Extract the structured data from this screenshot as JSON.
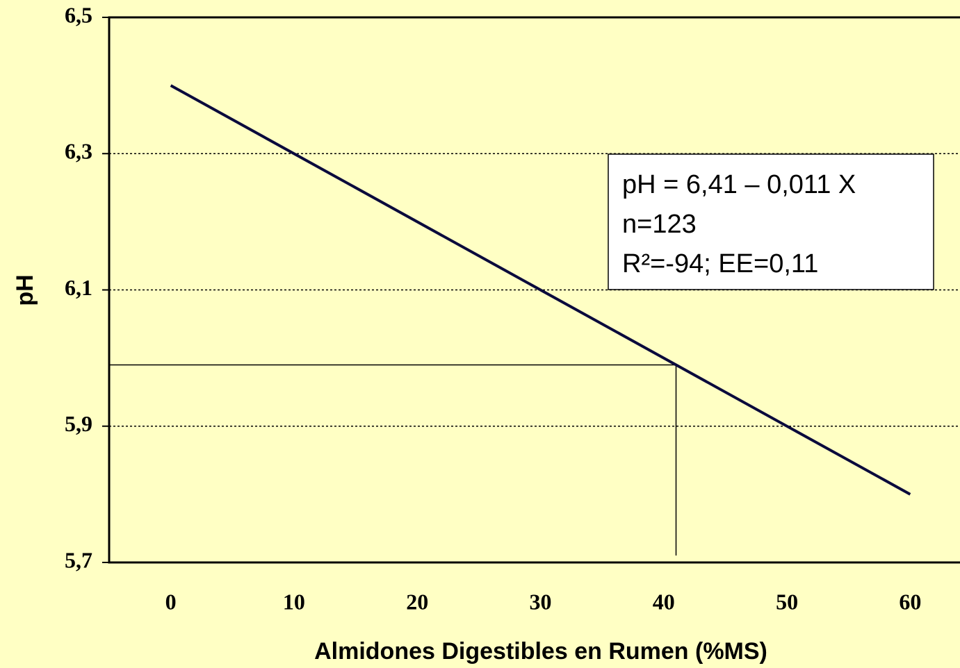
{
  "chart_data": {
    "type": "line",
    "x_label": "Almidones Digestibles en Rumen (%MS)",
    "y_label": "pH",
    "x": [
      0,
      60
    ],
    "series": [
      {
        "color": "#0a0a3c",
        "values": [
          6.4,
          5.8
        ]
      }
    ],
    "xlim": [
      -5,
      65
    ],
    "xticks": [
      0,
      10,
      20,
      30,
      40,
      50,
      60
    ],
    "ylim": [
      5.7,
      6.5
    ],
    "yticks": [
      {
        "value": 5.7,
        "label": "5,7"
      },
      {
        "value": 5.9,
        "label": "5,9"
      },
      {
        "value": 6.1,
        "label": "6,1"
      },
      {
        "value": 6.3,
        "label": "6,3"
      },
      {
        "value": 6.5,
        "label": "6,5"
      }
    ],
    "grid": true,
    "reference": {
      "x": 41,
      "y": 5.99
    },
    "annotation": [
      "pH = 6,41 – 0,011 X",
      "n=123",
      "R²=-94; EE=0,11"
    ]
  }
}
